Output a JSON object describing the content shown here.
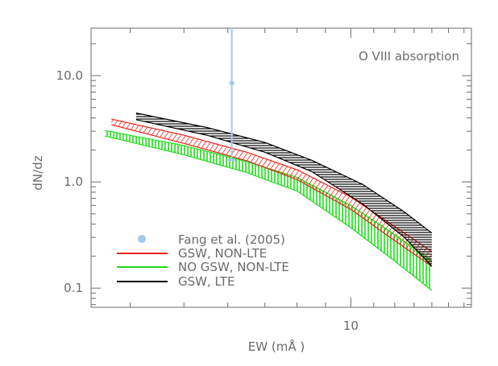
{
  "chart_data": {
    "type": "line",
    "title": "",
    "annotation": "O VIII absorption",
    "xlabel": "EW (mÅ )",
    "ylabel": "dN/dz",
    "x_scale": "log",
    "y_scale": "log",
    "xlim": [
      3.4,
      16.5
    ],
    "ylim": [
      0.066,
      28
    ],
    "x_ticks": [
      {
        "value": 10,
        "label": "10"
      }
    ],
    "y_ticks": [
      {
        "value": 0.1,
        "label": "0.1"
      },
      {
        "value": 1.0,
        "label": "1.0"
      },
      {
        "value": 10.0,
        "label": "10.0"
      }
    ],
    "grid": false,
    "legend_position": "bottom-left",
    "observation": {
      "name": "Fang et al. (2005)",
      "color": "#a3c8ef",
      "x": 6.1,
      "y": 8.5,
      "y_low": 1.6,
      "y_high": 28
    },
    "series": [
      {
        "name": "GSW, NON-LTE",
        "color": "#e8231a",
        "hatch": "diagonal",
        "x": [
          3.7,
          5.0,
          6.5,
          8.0,
          10.0,
          12.0,
          14.0
        ],
        "upper": [
          3.9,
          2.75,
          1.9,
          1.3,
          0.72,
          0.38,
          0.22
        ],
        "lower": [
          3.45,
          2.3,
          1.58,
          1.05,
          0.55,
          0.28,
          0.16
        ]
      },
      {
        "name": "NO GSW, NON-LTE",
        "color": "#1fdc1a",
        "hatch": "vertical",
        "x": [
          3.6,
          5.0,
          6.5,
          8.0,
          10.0,
          12.0,
          14.0
        ],
        "upper": [
          3.05,
          2.2,
          1.55,
          1.1,
          0.6,
          0.32,
          0.18
        ],
        "lower": [
          2.7,
          1.8,
          1.22,
          0.82,
          0.37,
          0.18,
          0.095
        ]
      },
      {
        "name": "GSW, LTE",
        "color": "#000000",
        "hatch": "horizontal",
        "x": [
          4.1,
          5.5,
          7.0,
          8.5,
          10.5,
          12.5,
          14.0
        ],
        "upper": [
          4.45,
          3.25,
          2.35,
          1.6,
          0.95,
          0.52,
          0.33
        ],
        "lower": [
          3.85,
          2.75,
          1.9,
          1.25,
          0.62,
          0.3,
          0.16
        ]
      }
    ]
  }
}
